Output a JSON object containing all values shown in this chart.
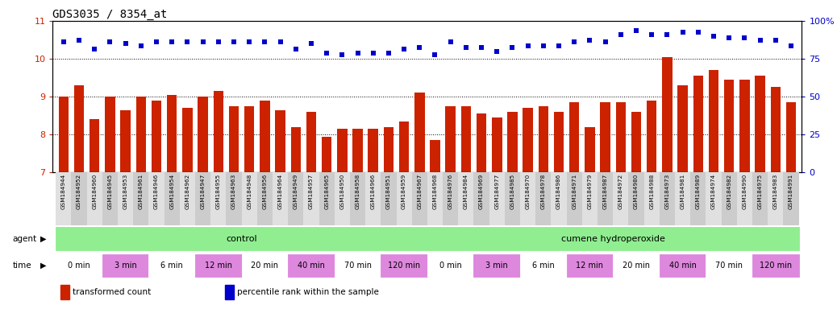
{
  "title": "GDS3035 / 8354_at",
  "samples": [
    "GSM184944",
    "GSM184952",
    "GSM184960",
    "GSM184945",
    "GSM184953",
    "GSM184961",
    "GSM184946",
    "GSM184954",
    "GSM184962",
    "GSM184947",
    "GSM184955",
    "GSM184963",
    "GSM184948",
    "GSM184956",
    "GSM184964",
    "GSM184949",
    "GSM184957",
    "GSM184965",
    "GSM184950",
    "GSM184958",
    "GSM184966",
    "GSM184951",
    "GSM184959",
    "GSM184967",
    "GSM184968",
    "GSM184976",
    "GSM184984",
    "GSM184969",
    "GSM184977",
    "GSM184985",
    "GSM184970",
    "GSM184978",
    "GSM184986",
    "GSM184971",
    "GSM184979",
    "GSM184987",
    "GSM184972",
    "GSM184980",
    "GSM184988",
    "GSM184973",
    "GSM184981",
    "GSM184989",
    "GSM184974",
    "GSM184982",
    "GSM184990",
    "GSM184975",
    "GSM184983",
    "GSM184991"
  ],
  "bar_values": [
    9.0,
    9.3,
    8.4,
    9.0,
    8.65,
    9.0,
    8.9,
    9.05,
    8.7,
    9.0,
    9.15,
    8.75,
    8.75,
    8.9,
    8.65,
    8.2,
    8.6,
    7.95,
    8.15,
    8.15,
    8.15,
    8.2,
    8.35,
    9.1,
    7.85,
    8.75,
    8.75,
    8.55,
    8.45,
    8.6,
    8.7,
    8.75,
    8.6,
    8.85,
    8.2,
    8.85,
    8.85,
    8.6,
    8.9,
    10.05,
    9.3,
    9.55,
    9.7,
    9.45,
    9.45,
    9.55,
    9.25,
    8.85
  ],
  "dot_values_left": [
    10.45,
    10.5,
    10.25,
    10.45,
    10.4,
    10.35,
    10.45,
    10.45,
    10.45,
    10.45,
    10.45,
    10.45,
    10.45,
    10.45,
    10.45,
    10.25,
    10.4,
    10.15,
    10.1,
    10.15,
    10.15,
    10.15,
    10.25,
    10.3,
    10.1,
    10.45,
    10.3,
    10.3,
    10.2,
    10.3,
    10.35,
    10.35,
    10.35,
    10.45,
    10.5,
    10.45,
    10.65,
    10.75,
    10.65,
    10.65,
    10.7,
    10.7,
    10.6,
    10.55,
    10.55,
    10.5,
    10.5,
    10.35
  ],
  "ylim_left": [
    7,
    11
  ],
  "yticks_left": [
    7,
    8,
    9,
    10,
    11
  ],
  "ylim_right": [
    0,
    100
  ],
  "yticks_right": [
    0,
    25,
    50,
    75,
    100
  ],
  "bar_color": "#cc2200",
  "dot_color": "#0000cc",
  "background_color": "#ffffff",
  "title_fontsize": 10,
  "agent_groups": [
    {
      "text": "control",
      "start": 0,
      "end": 23,
      "color": "#90ee90"
    },
    {
      "text": "cumene hydroperoxide",
      "start": 24,
      "end": 47,
      "color": "#90ee90"
    }
  ],
  "time_groups": [
    {
      "text": "0 min",
      "start": 0,
      "end": 2,
      "color": "#ffffff"
    },
    {
      "text": "3 min",
      "start": 3,
      "end": 5,
      "color": "#dd88dd"
    },
    {
      "text": "6 min",
      "start": 6,
      "end": 8,
      "color": "#ffffff"
    },
    {
      "text": "12 min",
      "start": 9,
      "end": 11,
      "color": "#dd88dd"
    },
    {
      "text": "20 min",
      "start": 12,
      "end": 14,
      "color": "#ffffff"
    },
    {
      "text": "40 min",
      "start": 15,
      "end": 17,
      "color": "#dd88dd"
    },
    {
      "text": "70 min",
      "start": 18,
      "end": 20,
      "color": "#ffffff"
    },
    {
      "text": "120 min",
      "start": 21,
      "end": 23,
      "color": "#dd88dd"
    },
    {
      "text": "0 min",
      "start": 24,
      "end": 26,
      "color": "#ffffff"
    },
    {
      "text": "3 min",
      "start": 27,
      "end": 29,
      "color": "#dd88dd"
    },
    {
      "text": "6 min",
      "start": 30,
      "end": 32,
      "color": "#ffffff"
    },
    {
      "text": "12 min",
      "start": 33,
      "end": 35,
      "color": "#dd88dd"
    },
    {
      "text": "20 min",
      "start": 36,
      "end": 38,
      "color": "#ffffff"
    },
    {
      "text": "40 min",
      "start": 39,
      "end": 41,
      "color": "#dd88dd"
    },
    {
      "text": "70 min",
      "start": 42,
      "end": 44,
      "color": "#ffffff"
    },
    {
      "text": "120 min",
      "start": 45,
      "end": 47,
      "color": "#dd88dd"
    }
  ],
  "legend": [
    {
      "color": "#cc2200",
      "marker": "s",
      "label": "transformed count"
    },
    {
      "color": "#0000cc",
      "marker": "s",
      "label": "percentile rank within the sample"
    }
  ]
}
